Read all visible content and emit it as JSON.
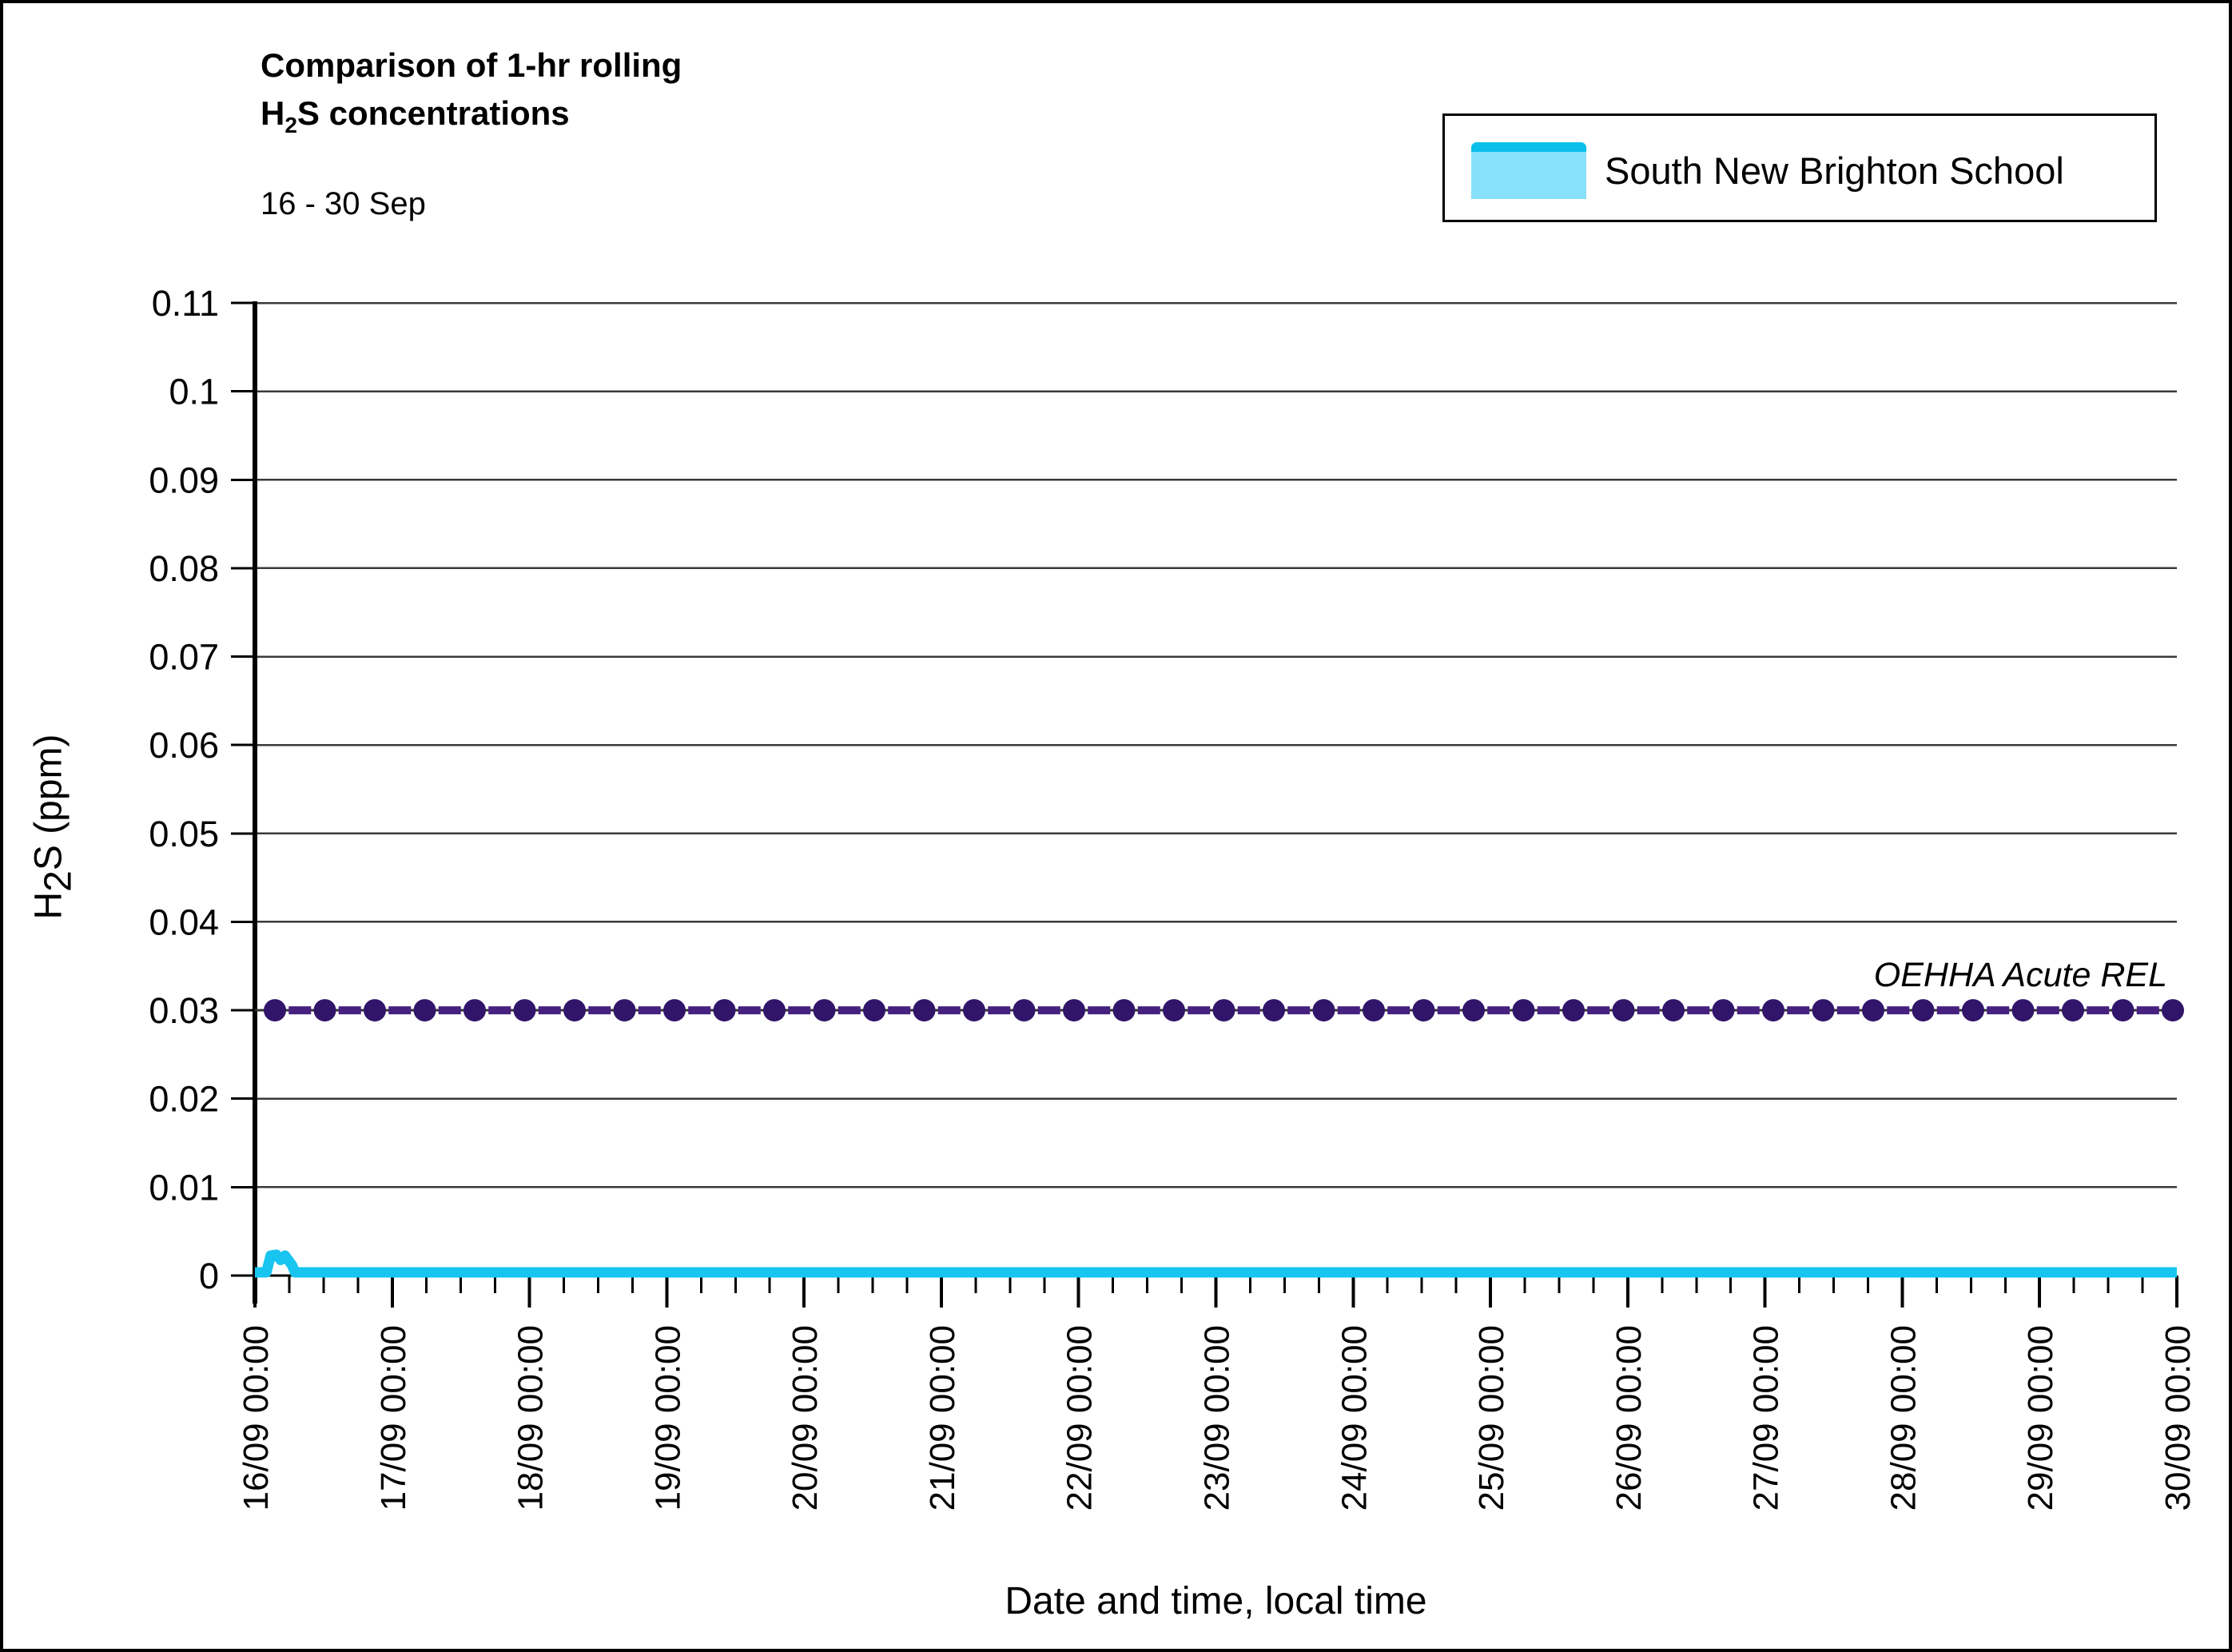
{
  "page": {
    "background": "#ffffff",
    "border_color": "#000000"
  },
  "title": {
    "line1": "Comparison of 1-hr rolling",
    "line2_prefix": "H",
    "line2_subscript": "2",
    "line2_rest": "S concentrations",
    "subtitle": "16 - 30 Sep"
  },
  "legend": {
    "items": [
      {
        "label": "South New Brighton School",
        "swatch_fill": "#87E1F8",
        "swatch_top_border": "#0BBFEA"
      }
    ]
  },
  "axes": {
    "y_title_prefix": "H",
    "y_title_subscript": "2",
    "y_title_rest": "S (ppm)",
    "x_title": "Date and time, local time"
  },
  "reference_label": "OEHHA Acute REL",
  "chart_data": {
    "type": "line",
    "title": "Comparison of 1-hr rolling H2S concentrations",
    "subtitle": "16 - 30 Sep",
    "xlabel": "Date and time, local time",
    "ylabel": "H2S (ppm)",
    "ylim": [
      0,
      0.11
    ],
    "grid": "horizontal",
    "grid_color": "#3A3A3A",
    "axis_color": "#000000",
    "legend_position": "top-right",
    "y_ticks": [
      {
        "value": 0.11,
        "label": "0.11"
      },
      {
        "value": 0.1,
        "label": "0.1"
      },
      {
        "value": 0.09,
        "label": "0.09"
      },
      {
        "value": 0.08,
        "label": "0.08"
      },
      {
        "value": 0.07,
        "label": "0.07"
      },
      {
        "value": 0.06,
        "label": "0.06"
      },
      {
        "value": 0.05,
        "label": "0.05"
      },
      {
        "value": 0.04,
        "label": "0.04"
      },
      {
        "value": 0.03,
        "label": "0.03"
      },
      {
        "value": 0.02,
        "label": "0.02"
      },
      {
        "value": 0.01,
        "label": "0.01"
      },
      {
        "value": 0,
        "label": "0"
      }
    ],
    "x_ticks": [
      "16/09 00:00",
      "17/09 00:00",
      "18/09 00:00",
      "19/09 00:00",
      "20/09 00:00",
      "21/09 00:00",
      "22/09 00:00",
      "23/09 00:00",
      "24/09 00:00",
      "25/09 00:00",
      "26/09 00:00",
      "27/09 00:00",
      "28/09 00:00",
      "29/09 00:00",
      "30/09 00:00"
    ],
    "x_minor_tick_hours": 6,
    "x_range_days": 14,
    "series": [
      {
        "name": "South New Brighton School",
        "color": "#18C5F0",
        "points": [
          [
            "16/09 00:00",
            0
          ],
          [
            "16/09 02:00",
            0
          ],
          [
            "16/09 02:45",
            0.0019
          ],
          [
            "16/09 03:45",
            0.002
          ],
          [
            "16/09 04:30",
            0.0014
          ],
          [
            "16/09 05:15",
            0.0019
          ],
          [
            "16/09 06:30",
            0.0008
          ],
          [
            "16/09 07:00",
            0
          ],
          [
            "30/09 00:00",
            0
          ]
        ]
      }
    ],
    "reference_line": {
      "label": "OEHHA Acute REL",
      "value": 0.03,
      "marker_color": "#31156A",
      "dash_color": "#46217F",
      "line_color": "#333333",
      "marker_count": 39
    }
  }
}
